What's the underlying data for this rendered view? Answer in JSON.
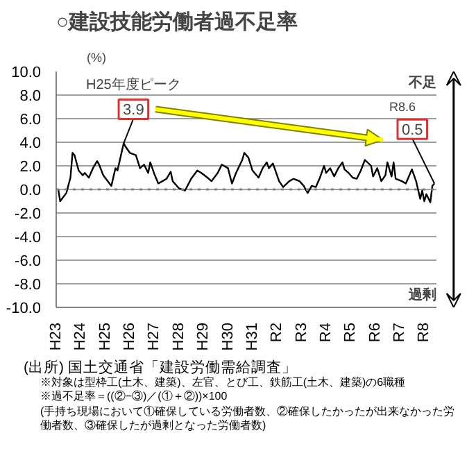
{
  "chart_data": {
    "type": "line",
    "title": "○建設技能労働者過不足率",
    "ylabel": "(%)",
    "x": [
      "2011-02",
      "2011-03",
      "2011-06",
      "2011-08",
      "2011-09",
      "2011-10",
      "2011-12",
      "2012-02",
      "2012-03",
      "2012-05",
      "2012-07",
      "2012-09",
      "2012-10",
      "2012-12",
      "2013-04",
      "2013-06",
      "2013-07",
      "2013-10",
      "2013-11",
      "2014-01",
      "2014-04",
      "2014-06",
      "2014-08",
      "2014-10",
      "2014-11",
      "2015-01",
      "2015-03",
      "2015-05",
      "2015-07",
      "2015-09",
      "2015-10",
      "2016-01",
      "2016-04",
      "2016-07",
      "2016-10",
      "2016-12",
      "2017-03",
      "2017-05",
      "2017-08",
      "2017-10",
      "2018-01",
      "2018-03",
      "2018-05",
      "2018-08",
      "2018-09",
      "2018-11",
      "2019-01",
      "2019-04",
      "2019-06",
      "2019-08",
      "2019-09",
      "2019-11",
      "2020-02",
      "2020-04",
      "2020-07",
      "2020-09",
      "2020-12",
      "2021-02",
      "2021-04",
      "2021-06",
      "2021-08",
      "2021-10",
      "2021-12",
      "2022-01",
      "2022-03",
      "2022-05",
      "2022-07",
      "2022-09",
      "2022-10",
      "2022-12",
      "2023-02",
      "2023-04",
      "2023-06",
      "2023-08",
      "2023-11",
      "2023-12",
      "2024-02",
      "2024-04",
      "2024-06",
      "2024-07",
      "2024-09",
      "2024-10",
      "2024-11",
      "2025-02",
      "2025-04",
      "2025-07",
      "2025-09",
      "2025-11",
      "2025-12",
      "2026-01",
      "2026-02",
      "2026-04",
      "2026-05",
      "2026-06"
    ],
    "series": [
      {
        "color": "#000000",
        "values": [
          0.0,
          -1.0,
          -0.3,
          1.0,
          3.1,
          2.9,
          1.6,
          1.2,
          1.4,
          1.0,
          1.8,
          2.4,
          2.1,
          1.2,
          0.3,
          1.8,
          1.6,
          3.9,
          3.6,
          3.1,
          2.9,
          1.8,
          2.1,
          1.4,
          2.3,
          1.3,
          0.5,
          0.7,
          0.9,
          1.5,
          0.7,
          0.1,
          -0.1,
          0.9,
          1.6,
          1.4,
          1.0,
          0.7,
          1.4,
          2.1,
          1.8,
          0.5,
          1.4,
          2.5,
          3.1,
          2.7,
          1.6,
          1.0,
          1.8,
          2.3,
          1.8,
          2.2,
          0.7,
          0.2,
          0.7,
          0.9,
          0.7,
          0.3,
          -0.3,
          0.3,
          0.2,
          1.0,
          2.0,
          1.4,
          1.8,
          1.1,
          1.8,
          2.3,
          1.7,
          1.4,
          1.0,
          0.9,
          1.6,
          2.5,
          2.0,
          1.1,
          1.8,
          0.7,
          1.2,
          2.3,
          1.1,
          2.3,
          0.9,
          0.7,
          0.5,
          1.7,
          0.7,
          -0.8,
          -0.1,
          -1.0,
          -0.4,
          -1.1,
          0.3,
          0.5
        ]
      }
    ],
    "xlim": [
      "2011-01",
      "2026-07"
    ],
    "xticks": [
      {
        "value": "2011-01",
        "label": "H23"
      },
      {
        "value": "2012-01",
        "label": "H24"
      },
      {
        "value": "2013-01",
        "label": "H25"
      },
      {
        "value": "2014-01",
        "label": "H26"
      },
      {
        "value": "2015-01",
        "label": "H27"
      },
      {
        "value": "2016-01",
        "label": "H28"
      },
      {
        "value": "2017-01",
        "label": "H29"
      },
      {
        "value": "2018-01",
        "label": "H30"
      },
      {
        "value": "2019-01",
        "label": "H31"
      },
      {
        "value": "2020-01",
        "label": "R2"
      },
      {
        "value": "2021-01",
        "label": "R3"
      },
      {
        "value": "2022-01",
        "label": "R4"
      },
      {
        "value": "2023-01",
        "label": "R5"
      },
      {
        "value": "2024-01",
        "label": "R6"
      },
      {
        "value": "2025-01",
        "label": "R7"
      },
      {
        "value": "2026-01",
        "label": "R8"
      }
    ],
    "ylim": [
      -10,
      10
    ],
    "yticks": [
      {
        "value": -10,
        "label": "-10.0"
      },
      {
        "value": -8,
        "label": "-8.0"
      },
      {
        "value": -6,
        "label": "-6.0"
      },
      {
        "value": -4,
        "label": "-4.0"
      },
      {
        "value": -2,
        "label": "-2.0"
      },
      {
        "value": 0,
        "label": "0.0"
      },
      {
        "value": 2,
        "label": "2.0"
      },
      {
        "value": 4,
        "label": "4.0"
      },
      {
        "value": 6,
        "label": "6.0"
      },
      {
        "value": 8,
        "label": "8.0"
      },
      {
        "value": 10,
        "label": "10.0"
      }
    ],
    "grid": "y",
    "ref_lines": [
      {
        "axis": "y",
        "value": 0,
        "color": "#808080",
        "line_style": "dotted"
      }
    ],
    "annotations": [
      "H25年度ピーク",
      {
        "text": "3.9",
        "x": "2013-10",
        "y": 3.9
      },
      "R8.6",
      {
        "text": "0.5",
        "x": "2026-06",
        "y": 0.5
      },
      "不足",
      "過剰",
      "(出所) 国土交通省「建設労働需給調査」",
      "※対象は型枠工(土木、建築)、左官、とび工、鉄筋工(土木、建築)の6職種",
      "※過不足率＝((②−③)／(①＋②))×100",
      "(手持ち現場において①確保している労働者数、②確保したかったが出来なかった労働者数、③確保したが過剰となった労働者数)"
    ]
  }
}
